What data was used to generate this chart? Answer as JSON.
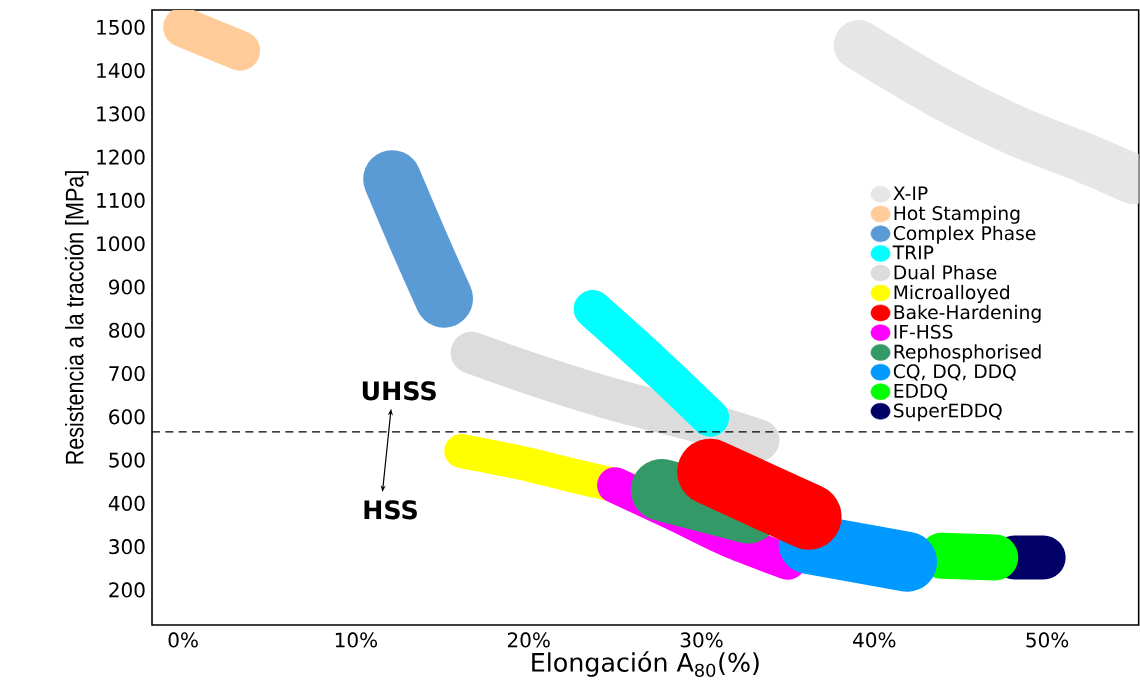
{
  "chart_data": {
    "type": "line",
    "xlabel": "Elongación A$_{80}$(%)",
    "ylabel": "Resistencia a la tracción [MPa]",
    "xlim": [
      -1.8,
      55.3
    ],
    "ylim": [
      119,
      1540
    ],
    "xticks": [
      {
        "value": 0,
        "label": "0%"
      },
      {
        "value": 10,
        "label": "10%"
      },
      {
        "value": 20,
        "label": "20%"
      },
      {
        "value": 30,
        "label": "30%"
      },
      {
        "value": 40,
        "label": "40%"
      },
      {
        "value": 50,
        "label": "50%"
      }
    ],
    "yticks": [
      200,
      300,
      400,
      500,
      600,
      700,
      800,
      900,
      1000,
      1100,
      1200,
      1300,
      1400,
      1500
    ],
    "legend": "right",
    "grid": false,
    "marker": "none",
    "line_style": "solid",
    "series": [
      {
        "name": "X-IP",
        "color": "#e6e6e6",
        "x": [
          39.1,
          43.7,
          48.3,
          52.2,
          55.0
        ],
        "values": [
          1459,
          1350,
          1259,
          1198,
          1149
        ]
      },
      {
        "name": "Hot Stamping",
        "color": "#ffcc99",
        "x": [
          0.0,
          3.3
        ],
        "values": [
          1500,
          1446
        ]
      },
      {
        "name": "Complex Phase",
        "color": "#5b9bd5",
        "x": [
          12.1,
          13.6,
          15.1
        ],
        "values": [
          1149,
          1008,
          873
        ]
      },
      {
        "name": "TRIP",
        "color": "#00ffff",
        "x": [
          23.7,
          27.1,
          30.5
        ],
        "values": [
          849,
          727,
          598
        ]
      },
      {
        "name": "Dual Phase",
        "color": "#dcdcdc",
        "x": [
          16.7,
          20.4,
          24.9,
          29.9,
          33.3
        ],
        "values": [
          748,
          696,
          640,
          588,
          546
        ]
      },
      {
        "name": "Microalloyed",
        "color": "#ffff00",
        "x": [
          16.1,
          19.5,
          22.7,
          25.0
        ],
        "values": [
          521,
          494,
          463,
          442
        ]
      },
      {
        "name": "Bake-Hardening",
        "color": "#ff0000",
        "x": [
          30.5,
          36.2
        ],
        "values": [
          473,
          369
        ]
      },
      {
        "name": "IF-HSS",
        "color": "#ff00ff",
        "x": [
          25.0,
          28.4,
          31.6,
          35.0
        ],
        "values": [
          442,
          379,
          317,
          265
        ]
      },
      {
        "name": "Rephosphorised",
        "color": "#339966",
        "x": [
          27.7,
          32.7
        ],
        "values": [
          431,
          379
        ]
      },
      {
        "name": "CQ, DQ, DDQ",
        "color": "#0099ff",
        "x": [
          36.2,
          41.9
        ],
        "values": [
          306,
          265
        ]
      },
      {
        "name": "EDDQ",
        "color": "#00ff00",
        "x": [
          43.9,
          47.0
        ],
        "values": [
          279,
          275
        ]
      },
      {
        "name": "SuperEDDQ",
        "color": "#000066",
        "x": [
          48.1,
          49.8
        ],
        "values": [
          275,
          275
        ]
      }
    ],
    "ref_lines": [
      {
        "axis": "y",
        "value": 565,
        "color": "#000000",
        "line_style": "dashed"
      }
    ],
    "annotations": [
      "UHSS",
      "HSS"
    ]
  }
}
